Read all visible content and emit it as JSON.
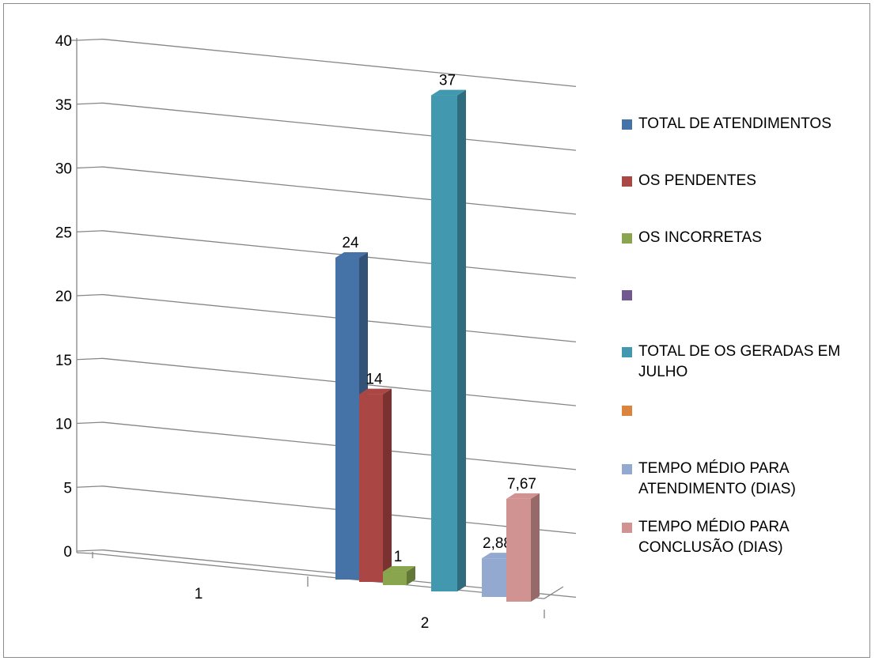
{
  "chart_data": {
    "type": "bar",
    "categories": [
      "1",
      "2"
    ],
    "ylim": [
      0,
      40
    ],
    "yticks": [
      "0",
      "5",
      "10",
      "15",
      "20",
      "25",
      "30",
      "35",
      "40"
    ],
    "grid": true,
    "legend_position": "right",
    "series": [
      {
        "name": "TOTAL DE ATENDIMENTOS",
        "color": "#4572a7",
        "label": "24",
        "values": [
          null,
          24
        ]
      },
      {
        "name": "OS PENDENTES",
        "color": "#aa4643",
        "label": "14",
        "values": [
          null,
          14
        ]
      },
      {
        "name": "OS INCORRETAS",
        "color": "#89a54e",
        "label": "1",
        "values": [
          null,
          1
        ]
      },
      {
        "name": "",
        "color": "#71588f",
        "label": "",
        "values": [
          null,
          null
        ]
      },
      {
        "name": "TOTAL DE OS GERADAS EM JULHO",
        "color": "#4198af",
        "label": "37",
        "values": [
          null,
          37
        ]
      },
      {
        "name": "",
        "color": "#db843d",
        "label": "",
        "values": [
          null,
          null
        ]
      },
      {
        "name": "TEMPO MÉDIO PARA ATENDIMENTO (DIAS)",
        "color": "#93a9cf",
        "label": "2,88",
        "values": [
          null,
          2.88
        ]
      },
      {
        "name": "TEMPO MÉDIO PARA CONCLUSÃO (DIAS)",
        "color": "#d19392",
        "label": "7,67",
        "values": [
          null,
          7.67
        ]
      }
    ]
  }
}
